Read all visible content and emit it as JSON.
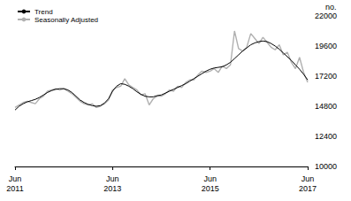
{
  "chart_data": {
    "type": "line",
    "ylabel": "no.",
    "categories": [
      "Jun 2011",
      null,
      null,
      null,
      null,
      null,
      null,
      null,
      null,
      null,
      null,
      null,
      null,
      null,
      null,
      null,
      null,
      null,
      null,
      null,
      null,
      null,
      null,
      null,
      "Jun 2013",
      null,
      null,
      null,
      null,
      null,
      null,
      null,
      null,
      null,
      null,
      null,
      null,
      null,
      null,
      null,
      null,
      null,
      null,
      null,
      null,
      null,
      null,
      null,
      "Jun 2015",
      null,
      null,
      null,
      null,
      null,
      null,
      null,
      null,
      null,
      null,
      null,
      null,
      null,
      null,
      null,
      null,
      null,
      null,
      null,
      null,
      null,
      null,
      null,
      "Jun 2017"
    ],
    "series": [
      {
        "name": "Seasonally Adjusted",
        "color": "#b0b0b0",
        "values": [
          14700,
          14900,
          15100,
          15200,
          15100,
          15000,
          15400,
          15600,
          16000,
          16100,
          16200,
          16100,
          16200,
          16000,
          15800,
          15500,
          15200,
          15000,
          14900,
          15000,
          14700,
          14800,
          15000,
          15300,
          16100,
          16300,
          16400,
          17000,
          16500,
          16300,
          16100,
          15700,
          15800,
          14900,
          15400,
          15600,
          15600,
          15800,
          16100,
          16000,
          16400,
          16300,
          16700,
          16900,
          16900,
          17300,
          17600,
          17500,
          17600,
          17800,
          17500,
          18000,
          17800,
          18100,
          20800,
          19400,
          19200,
          19500,
          20600,
          20200,
          19800,
          20300,
          19900,
          19500,
          19300,
          19700,
          18900,
          19100,
          18300,
          17800,
          18700,
          17500,
          16700
        ]
      },
      {
        "name": "Trend",
        "color": "#000000",
        "values": [
          14500,
          14800,
          15000,
          15150,
          15250,
          15350,
          15500,
          15700,
          15900,
          16050,
          16150,
          16200,
          16200,
          16100,
          15900,
          15600,
          15300,
          15100,
          14950,
          14850,
          14800,
          14850,
          15050,
          15400,
          16000,
          16400,
          16600,
          16550,
          16400,
          16200,
          15950,
          15750,
          15600,
          15550,
          15550,
          15650,
          15700,
          15850,
          16000,
          16150,
          16300,
          16450,
          16600,
          16800,
          17000,
          17200,
          17400,
          17600,
          17750,
          17850,
          17900,
          17950,
          18100,
          18300,
          18600,
          18900,
          19200,
          19450,
          19700,
          19850,
          19950,
          20000,
          19950,
          19800,
          19600,
          19350,
          19050,
          18750,
          18450,
          18100,
          17750,
          17350,
          16900
        ]
      }
    ],
    "ylim": [
      10000,
      22000
    ],
    "yticks": [
      10000,
      12400,
      14800,
      17200,
      19600,
      22000
    ],
    "grid": false,
    "legend": "top-left"
  }
}
